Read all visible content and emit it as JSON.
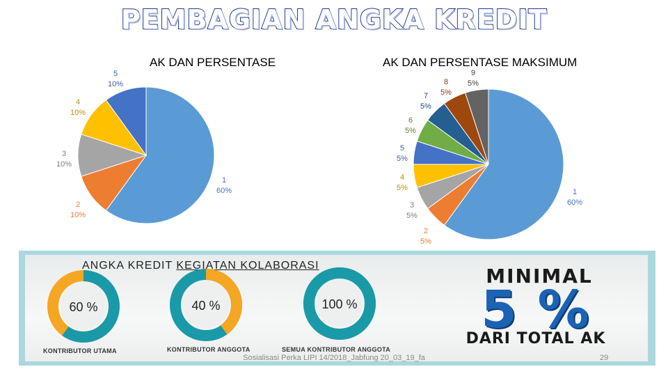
{
  "slide": {
    "title": "PEMBAGIAN ANGKA KREDIT",
    "footer": "Sosialisasi Perka LIPI 14/2018_Jabfung 20_03_19_fa",
    "page_number": "29"
  },
  "chart_data": [
    {
      "type": "pie",
      "title": "AK DAN PERSENTASE",
      "categories": [
        "1",
        "2",
        "3",
        "4",
        "5"
      ],
      "values": [
        60,
        10,
        10,
        10,
        10
      ],
      "labels": [
        "60%",
        "10%",
        "10%",
        "10%",
        "10%"
      ],
      "colors": [
        "#5b9bd5",
        "#ed7d31",
        "#a5a5a5",
        "#ffc000",
        "#4472c4"
      ],
      "label_colors": [
        "#4472c4",
        "#ed7d31",
        "#7f7f7f",
        "#bf9000",
        "#3a5fa8"
      ]
    },
    {
      "type": "pie",
      "title": "AK DAN PERSENTASE MAKSIMUM",
      "categories": [
        "1",
        "2",
        "3",
        "4",
        "5",
        "6",
        "7",
        "8",
        "9"
      ],
      "values": [
        60,
        5,
        5,
        5,
        5,
        5,
        5,
        5,
        5
      ],
      "labels": [
        "60%",
        "5%",
        "5%",
        "5%",
        "5%",
        "5%",
        "5%",
        "5%",
        "5%"
      ],
      "colors": [
        "#5b9bd5",
        "#ed7d31",
        "#a5a5a5",
        "#ffc000",
        "#4472c4",
        "#70ad47",
        "#255e91",
        "#9e480e",
        "#636363"
      ],
      "label_colors": [
        "#4472c4",
        "#ed7d31",
        "#7f7f7f",
        "#bf9000",
        "#3a5fa8",
        "#548235",
        "#1f4e79",
        "#843c0c",
        "#404040"
      ]
    }
  ],
  "banner": {
    "heading_part1": "ANGKA KREDIT ",
    "heading_part2": "KEGIATAN KOLABORASI",
    "donuts": [
      {
        "caption": "KONTRIBUTOR UTAMA",
        "label": "60 %",
        "percent": 60,
        "color_main": "#1a9aa8",
        "color_rest": "#f5a623"
      },
      {
        "caption": "KONTRIBUTOR ANGGOTA",
        "label": "40 %",
        "percent": 40,
        "color_main": "#f5a623",
        "color_rest": "#1a9aa8"
      },
      {
        "caption": "SEMUA KONTRIBUTOR ANGGOTA",
        "label": "100 %",
        "percent": 100,
        "color_main": "#1a9aa8",
        "color_rest": "#1a9aa8"
      }
    ],
    "minimal_line1": "MINIMAL",
    "minimal_line2": "5 %",
    "minimal_line3": "DARI TOTAL AK"
  }
}
